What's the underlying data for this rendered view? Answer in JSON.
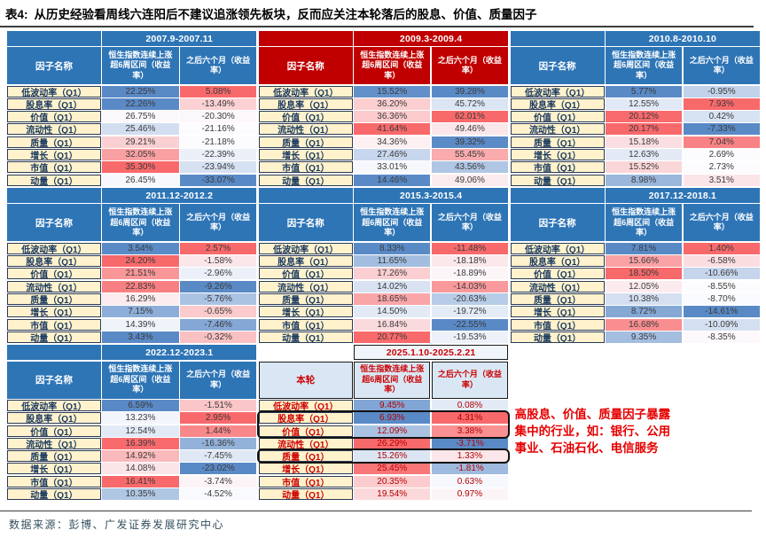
{
  "title": {
    "prefix": "表4:",
    "text": "从历史经验看周线六连阳后不建议追涨领先板块，反而应关注本轮落后的股息、价值、质量因子"
  },
  "table": {
    "factor_col_header": "因子名称",
    "rise_col_header": "恒生指数连续上涨超6周区间（收益率）",
    "after_col_header": "之后六个月（收益率）",
    "factors": [
      "低波动率（Q1）",
      "股息率（Q1）",
      "价值（Q1）",
      "流动性（Q1）",
      "质量（Q1）",
      "增长（Q1）",
      "市值（Q1）",
      "动量（Q1）"
    ],
    "blocks": [
      {
        "period": "2007.9-2007.11",
        "theme": "blue",
        "rise": [
          22.25,
          22.26,
          26.75,
          25.46,
          29.21,
          32.05,
          35.3,
          26.45
        ],
        "after": [
          5.08,
          -13.49,
          -20.3,
          -21.16,
          -21.18,
          -22.39,
          -23.94,
          -33.07
        ]
      },
      {
        "period": "2009.3-2009.4",
        "theme": "red",
        "rise": [
          15.52,
          36.2,
          36.36,
          41.64,
          34.36,
          27.46,
          33.01,
          14.46
        ],
        "after": [
          39.28,
          45.72,
          62.01,
          49.46,
          39.32,
          55.45,
          43.56,
          49.06
        ]
      },
      {
        "period": "2010.8-2010.10",
        "theme": "blue",
        "rise": [
          5.77,
          12.55,
          20.12,
          20.17,
          15.18,
          12.63,
          15.52,
          8.98
        ],
        "after": [
          -0.95,
          7.93,
          0.42,
          -7.33,
          7.04,
          2.69,
          2.73,
          3.51
        ]
      },
      {
        "period": "2011.12-2012.2",
        "theme": "blue",
        "rise": [
          3.54,
          24.2,
          21.51,
          22.83,
          16.29,
          7.15,
          14.39,
          3.43
        ],
        "after": [
          2.57,
          -1.58,
          -2.96,
          -9.26,
          -5.76,
          -0.65,
          -7.46,
          -0.32
        ]
      },
      {
        "period": "2015.3-2015.4",
        "theme": "blue",
        "rise": [
          8.33,
          11.65,
          17.26,
          14.02,
          18.65,
          14.5,
          16.84,
          20.77
        ],
        "after": [
          -11.48,
          -18.18,
          -18.89,
          -14.03,
          -20.63,
          -19.72,
          -22.55,
          -19.53
        ]
      },
      {
        "period": "2017.12-2018.1",
        "theme": "blue",
        "rise": [
          7.81,
          15.66,
          18.5,
          12.05,
          10.38,
          8.72,
          16.68,
          9.35
        ],
        "after": [
          1.4,
          -6.58,
          -10.66,
          -8.55,
          -8.7,
          -14.61,
          -10.09,
          -8.35
        ]
      },
      {
        "period": "2022.12-2023.1",
        "theme": "blue",
        "rise": [
          6.59,
          13.23,
          12.54,
          16.39,
          14.92,
          14.08,
          16.41,
          10.35
        ],
        "after": [
          -1.51,
          2.95,
          1.44,
          -16.36,
          -7.45,
          -23.02,
          -3.74,
          -4.52
        ]
      },
      {
        "period": "2025.1.10-2025.2.21",
        "theme": "current",
        "label": "本轮",
        "rise": [
          9.45,
          6.93,
          12.09,
          26.29,
          15.26,
          25.45,
          20.35,
          19.54
        ],
        "after": [
          0.08,
          4.31,
          3.38,
          -3.71,
          1.33,
          -1.81,
          0.63,
          0.97
        ]
      }
    ],
    "highlight_boxes": [
      {
        "block": 7,
        "from_row": 1,
        "to_row": 2
      },
      {
        "block": 7,
        "from_row": 4,
        "to_row": 4
      }
    ]
  },
  "annotation": "高股息、价值、质量因子暴露集中的行业，如：银行、公用事业、石油石化、电信服务",
  "source": "数据来源：彭博、广发证券发展研究中心",
  "colors": {
    "blue_header": "#2E75B6",
    "red_header": "#C00000",
    "factor_bg": "#FFF2CC",
    "factor_text": "#17375E",
    "current_header_bg": "#D9E7F4",
    "current_text": "#CC0000",
    "value_text": "#3A3A3A",
    "scale_low": "#5A8AC6",
    "scale_mid": "#FCFCFF",
    "scale_high": "#F8696B"
  }
}
